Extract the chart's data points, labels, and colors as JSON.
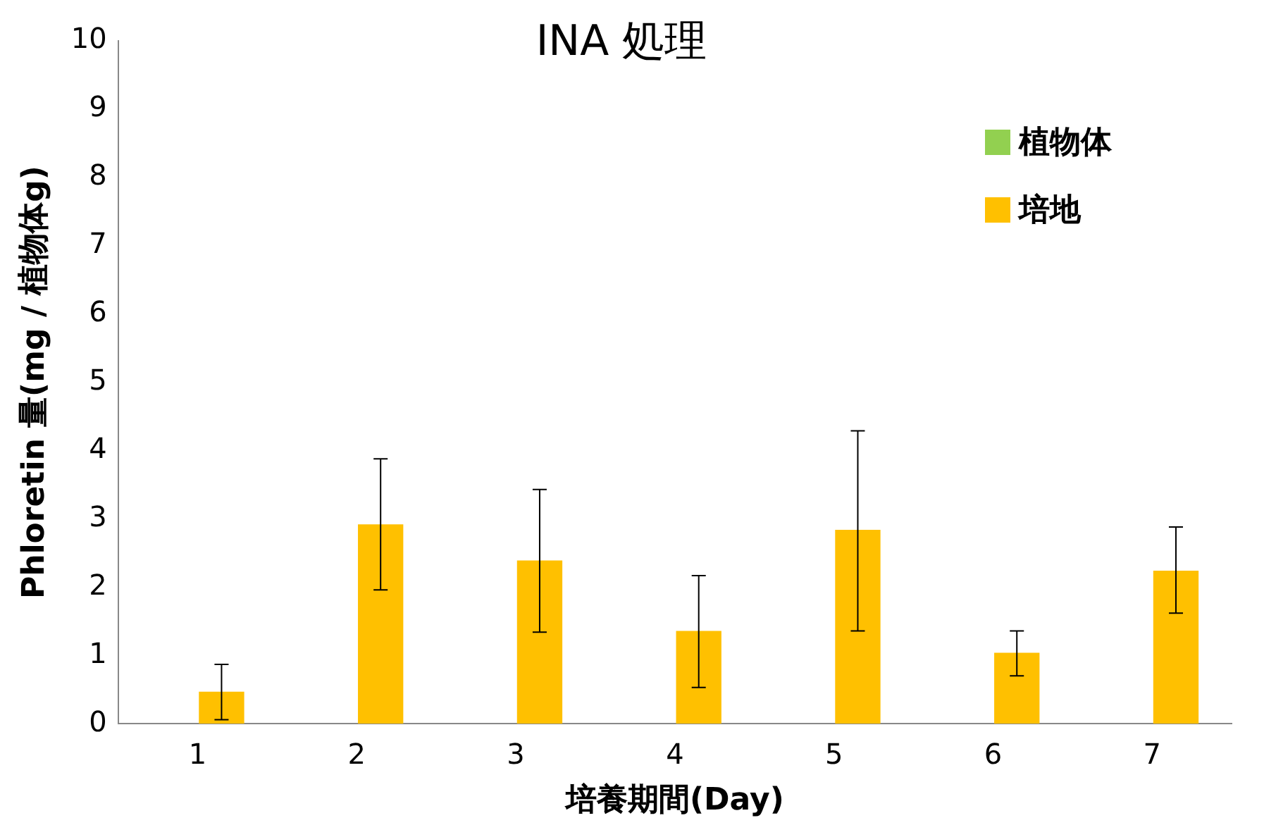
{
  "chart_data": {
    "type": "bar",
    "title": "INA 処理",
    "xlabel": "培養期間(Day)",
    "ylabel": "Phloretin 量(mg / 植物体g)",
    "categories": [
      "1",
      "2",
      "3",
      "4",
      "5",
      "6",
      "7"
    ],
    "series": [
      {
        "name": "植物体",
        "color": "#92d050",
        "values": [
          0,
          0,
          0,
          0,
          0,
          0,
          0
        ]
      },
      {
        "name": "培地",
        "color": "#ffc000",
        "values": [
          0.47,
          2.92,
          2.39,
          1.36,
          2.84,
          1.04,
          2.24
        ],
        "errors": [
          [
            0.06,
            0.87
          ],
          [
            1.96,
            3.88
          ],
          [
            1.34,
            3.43
          ],
          [
            0.53,
            2.17
          ],
          [
            1.36,
            4.29
          ],
          [
            0.7,
            1.36
          ],
          [
            1.62,
            2.88
          ]
        ]
      }
    ],
    "ylim": [
      0,
      10
    ],
    "yticks": [
      0,
      1,
      2,
      3,
      4,
      5,
      6,
      7,
      8,
      9,
      10
    ],
    "grid": false,
    "legend": "top right"
  }
}
